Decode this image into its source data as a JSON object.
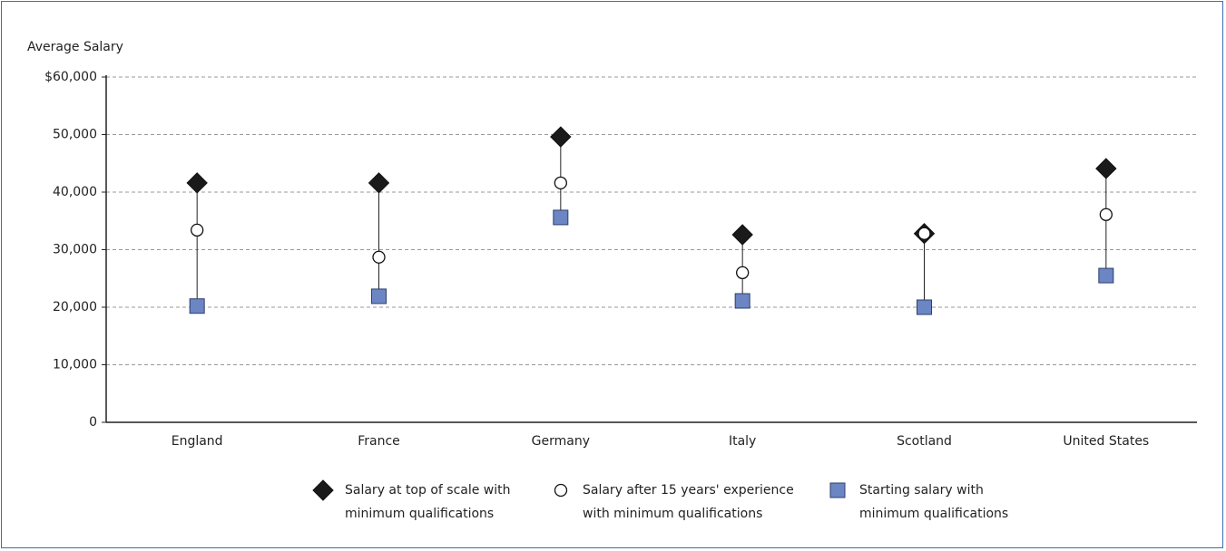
{
  "chart_data": {
    "type": "dot",
    "y_axis_label": "Average Salary",
    "categories": [
      "England",
      "France",
      "Germany",
      "Italy",
      "Scotland",
      "United States"
    ],
    "series": [
      {
        "name": "Salary at top of scale with minimum qualifications",
        "color": "#1a1a1a",
        "marker": "diamond",
        "values": [
          41600,
          41600,
          49600,
          32600,
          32800,
          44100
        ]
      },
      {
        "name": "Salary after 15 years' experience with minimum qualifications",
        "color": "#ffffff",
        "marker": "circle",
        "values": [
          33400,
          28700,
          41600,
          26000,
          32800,
          36100
        ]
      },
      {
        "name": "Starting salary with minimum qualifications",
        "color": "#6b86c3",
        "marker": "square",
        "values": [
          20200,
          21900,
          35600,
          21100,
          20000,
          25500
        ]
      }
    ],
    "ylim": [
      0,
      60000
    ],
    "yticks": [
      0,
      {
        "value": 10000,
        "label": "10,000"
      },
      {
        "value": 20000,
        "label": "20,000"
      },
      {
        "value": 30000,
        "label": "30,000"
      },
      {
        "value": 40000,
        "label": "40,000"
      },
      {
        "value": 50000,
        "label": "50,000"
      },
      {
        "value": 60000,
        "label": "$60,000"
      }
    ],
    "grid": true
  }
}
